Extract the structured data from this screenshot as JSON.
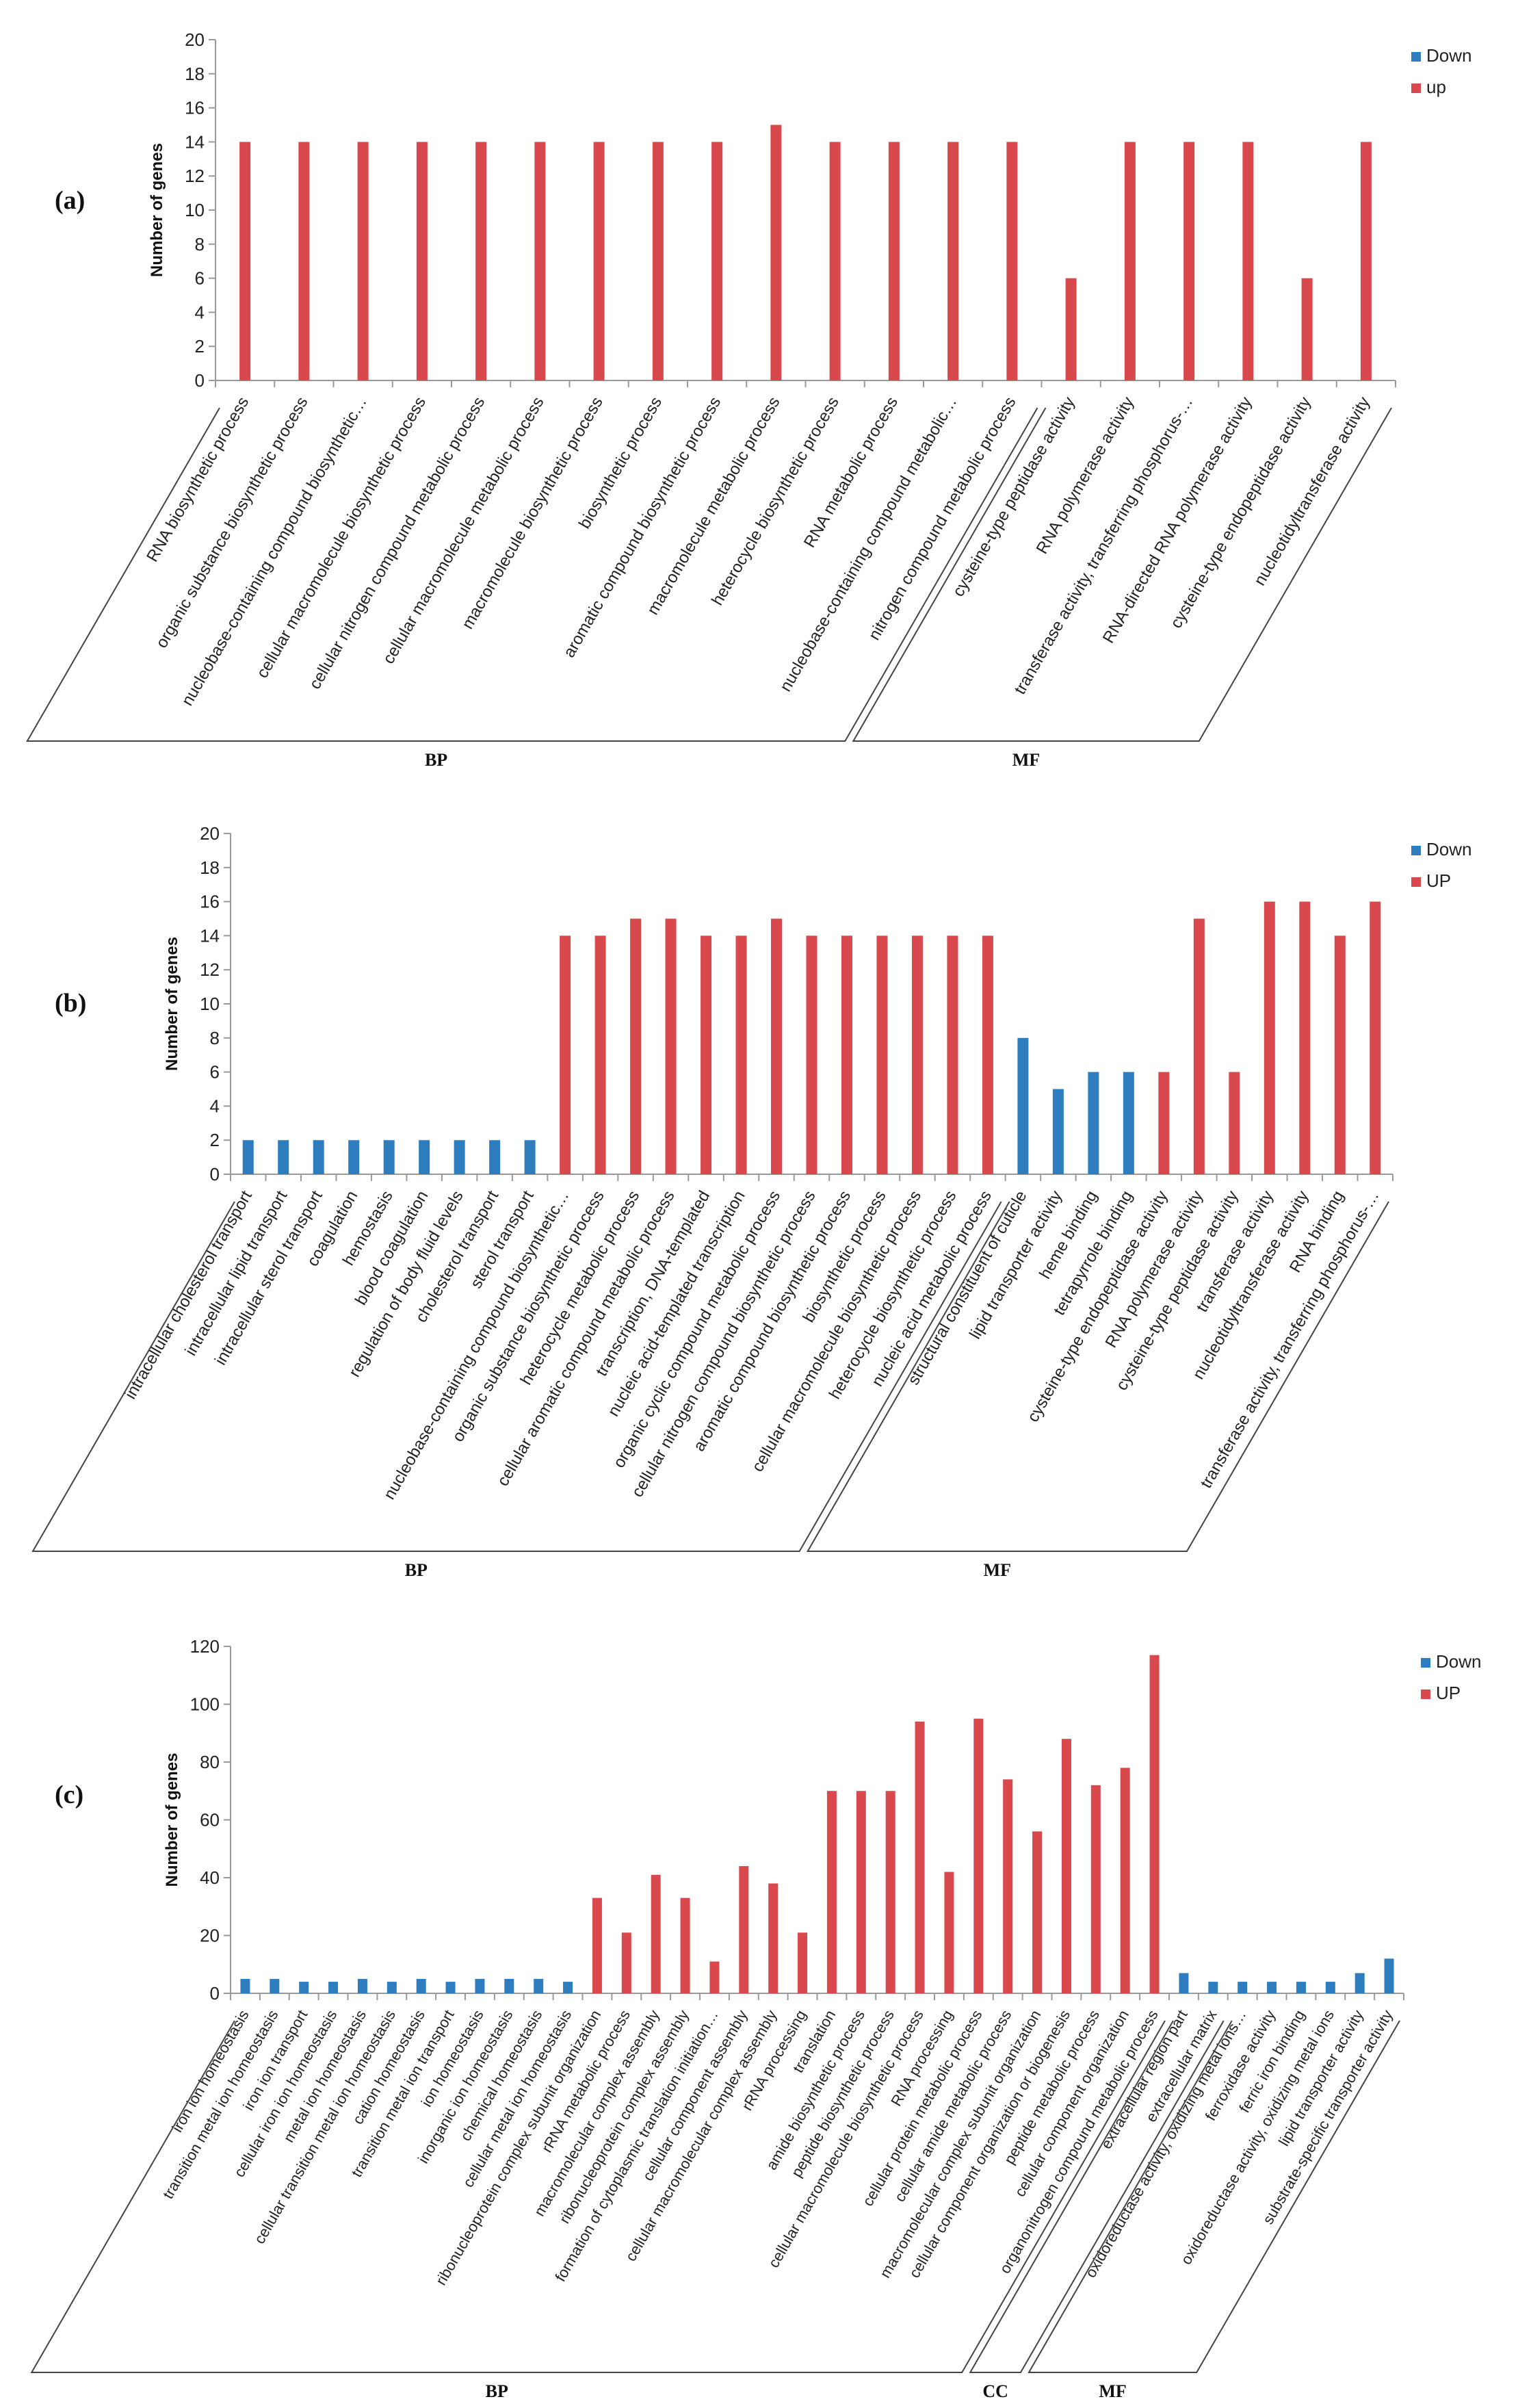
{
  "colors": {
    "down": "#2E7DBF",
    "up": "#D9484D"
  },
  "chart_data": [
    {
      "type": "bar",
      "panel": "(a)",
      "ylabel": "Number of genes",
      "ylim": [
        0,
        20
      ],
      "ticks": [
        0,
        2,
        4,
        6,
        8,
        10,
        12,
        14,
        16,
        18,
        20
      ],
      "legend": [
        "Down",
        "up"
      ],
      "categories": [
        "RNA biosynthetic process",
        "organic substance biosynthetic process",
        "nucleobase-containing compound biosynthetic…",
        "cellular macromolecule biosynthetic process",
        "cellular nitrogen compound metabolic process",
        "cellular macromolecule metabolic process",
        "macromolecule biosynthetic process",
        "biosynthetic process",
        "aromatic compound biosynthetic process",
        "macromolecule metabolic process",
        "heterocycle biosynthetic process",
        "RNA metabolic process",
        "nucleobase-containing compound metabolic…",
        "nitrogen compound metabolic process",
        "cysteine-type peptidase activity",
        "RNA polymerase activity",
        "transferase activity, transferring phosphorus-…",
        "RNA-directed RNA polymerase activity",
        "cysteine-type endopeptidase activity",
        "nucleotidyltransferase activity"
      ],
      "values": [
        14,
        14,
        14,
        14,
        14,
        14,
        14,
        14,
        14,
        15,
        14,
        14,
        14,
        14,
        6,
        14,
        14,
        14,
        6,
        14
      ],
      "series_index": [
        "up",
        "up",
        "up",
        "up",
        "up",
        "up",
        "up",
        "up",
        "up",
        "up",
        "up",
        "up",
        "up",
        "up",
        "up",
        "up",
        "up",
        "up",
        "up",
        "up"
      ],
      "groups": [
        {
          "label": "BP",
          "start": 0,
          "end": 13
        },
        {
          "label": "MF",
          "start": 14,
          "end": 19
        }
      ]
    },
    {
      "type": "bar",
      "panel": "(b)",
      "ylabel": "Number of genes",
      "ylim": [
        0,
        20
      ],
      "ticks": [
        0,
        2,
        4,
        6,
        8,
        10,
        12,
        14,
        16,
        18,
        20
      ],
      "legend": [
        "Down",
        "UP"
      ],
      "categories": [
        "intracellular cholesterol transport",
        "intracellular lipid transport",
        "intracellular sterol transport",
        "coagulation",
        "hemostasis",
        "blood coagulation",
        "regulation of body fluid levels",
        "cholesterol transport",
        "sterol transport",
        "nucleobase-containing compound biosynthetic…",
        "organic substance biosynthetic process",
        "heterocycle metabolic process",
        "cellular aromatic compound metabolic process",
        "transcription, DNA-templated",
        "nucleic acid-templated transcription",
        "organic cyclic compound metabolic process",
        "cellular nitrogen compound biosynthetic process",
        "aromatic compound biosynthetic process",
        "biosynthetic process",
        "cellular macromolecule biosynthetic process",
        "heterocycle biosynthetic process",
        "nucleic acid metabolic process",
        "structural constituent of cuticle",
        "lipid transporter activity",
        "heme binding",
        "tetrapyrrole binding",
        "cysteine-type endopeptidase activity",
        "RNA polymerase activity",
        "cysteine-type peptidase activity",
        "transferase activity",
        "nucleotidyltransferase activity",
        "RNA binding",
        "transferase activity, transferring phosphorus-…"
      ],
      "values": [
        2,
        2,
        2,
        2,
        2,
        2,
        2,
        2,
        2,
        14,
        14,
        15,
        15,
        14,
        14,
        15,
        14,
        14,
        14,
        14,
        14,
        14,
        8,
        5,
        6,
        6,
        6,
        15,
        6,
        16,
        16,
        14,
        16
      ],
      "series_index": [
        "down",
        "down",
        "down",
        "down",
        "down",
        "down",
        "down",
        "down",
        "down",
        "up",
        "up",
        "up",
        "up",
        "up",
        "up",
        "up",
        "up",
        "up",
        "up",
        "up",
        "up",
        "up",
        "down",
        "down",
        "down",
        "down",
        "up",
        "up",
        "up",
        "up",
        "up",
        "up",
        "up"
      ],
      "groups": [
        {
          "label": "BP",
          "start": 0,
          "end": 21
        },
        {
          "label": "MF",
          "start": 22,
          "end": 32
        }
      ]
    },
    {
      "type": "bar",
      "panel": "(c)",
      "ylabel": "Number of genes",
      "ylim": [
        0,
        120
      ],
      "ticks": [
        0,
        20,
        40,
        60,
        80,
        100,
        120
      ],
      "legend": [
        "Down",
        "UP"
      ],
      "categories": [
        "iron ion homeostasis",
        "transition metal ion homeostasis",
        "iron ion transport",
        "cellular iron ion homeostasis",
        "metal ion homeostasis",
        "cellular transition metal ion homeostasis",
        "cation homeostasis",
        "transition metal ion transport",
        "ion homeostasis",
        "inorganic ion homeostasis",
        "chemical homeostasis",
        "cellular metal ion homeostasis",
        "ribonucleoprotein complex subunit organization",
        "rRNA metabolic process",
        "macromolecular complex assembly",
        "ribonucleoprotein complex assembly",
        "formation of cytoplasmic translation initiation…",
        "cellular component assembly",
        "cellular macromolecular complex assembly",
        "rRNA processing",
        "translation",
        "amide biosynthetic process",
        "peptide biosynthetic process",
        "cellular macromolecule biosynthetic process",
        "RNA processing",
        "cellular protein metabolic process",
        "cellular amide metabolic process",
        "macromolecular complex subunit organization",
        "cellular component organization or biogenesis",
        "peptide metabolic process",
        "cellular component organization",
        "organonitrogen compound metabolic process",
        "extracellular region part",
        "extracellular matrix",
        "oxidoreductase activity, oxidizing metal ions…",
        "ferroxidase activity",
        "ferric iron binding",
        "oxidoreductase activity, oxidizing metal ions",
        "lipid transporter activity",
        "substrate-specific transporter activity"
      ],
      "values": [
        5,
        5,
        4,
        4,
        5,
        4,
        5,
        4,
        5,
        5,
        5,
        4,
        33,
        21,
        41,
        33,
        11,
        44,
        38,
        21,
        70,
        70,
        70,
        94,
        42,
        95,
        74,
        56,
        88,
        72,
        78,
        117,
        7,
        4,
        4,
        4,
        4,
        4,
        7,
        12
      ],
      "series_index": [
        "down",
        "down",
        "down",
        "down",
        "down",
        "down",
        "down",
        "down",
        "down",
        "down",
        "down",
        "down",
        "up",
        "up",
        "up",
        "up",
        "up",
        "up",
        "up",
        "up",
        "up",
        "up",
        "up",
        "up",
        "up",
        "up",
        "up",
        "up",
        "up",
        "up",
        "up",
        "up",
        "down",
        "down",
        "down",
        "down",
        "down",
        "down",
        "down",
        "down"
      ],
      "groups": [
        {
          "label": "BP",
          "start": 0,
          "end": 31
        },
        {
          "label": "CC",
          "start": 32,
          "end": 33
        },
        {
          "label": "MF",
          "start": 34,
          "end": 39
        }
      ]
    }
  ]
}
